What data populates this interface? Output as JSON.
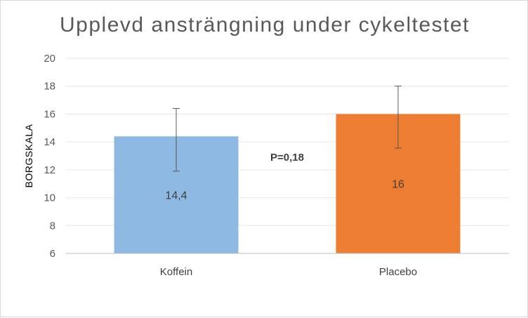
{
  "chart_data": {
    "type": "bar",
    "title": "Upplevd ansträngning under cykeltestet",
    "xlabel": "",
    "ylabel": "BORGSKALA",
    "ylim": [
      6,
      20
    ],
    "yticks": [
      6,
      8,
      10,
      12,
      14,
      16,
      18,
      20
    ],
    "ytick_labels": [
      "6",
      "8",
      "10",
      "12",
      "14",
      "16",
      "18",
      "20"
    ],
    "grid": true,
    "legend": "none",
    "categories": [
      "Koffein",
      "Placebo"
    ],
    "values": [
      14.4,
      16
    ],
    "data_labels": [
      "14,4",
      "16"
    ],
    "error_bars": [
      {
        "low": 11.9,
        "high": 16.4
      },
      {
        "low": 13.55,
        "high": 18.0
      }
    ],
    "colors": [
      "#8db9e2",
      "#ed7d31"
    ],
    "annotation": "P=0,18"
  }
}
